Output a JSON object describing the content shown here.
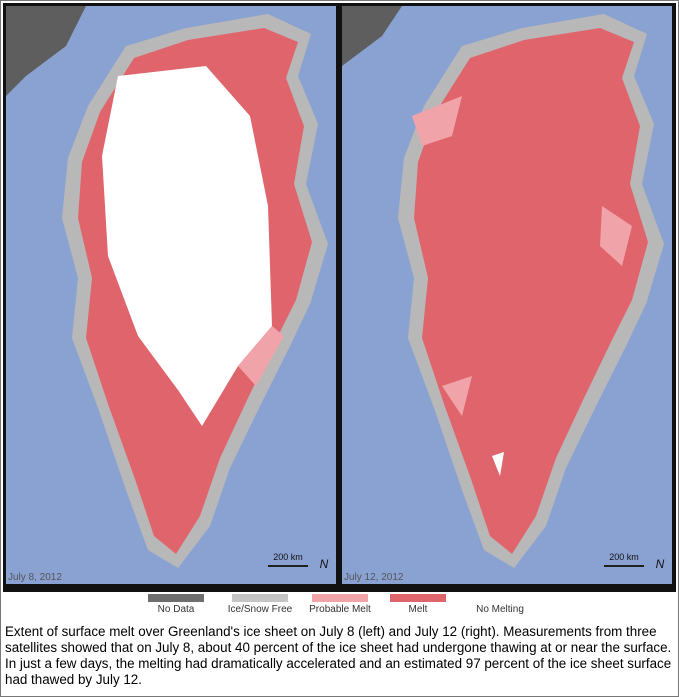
{
  "panels": [
    {
      "date": "July 8, 2012",
      "scale": "200 km",
      "north": "N"
    },
    {
      "date": "July 12, 2012",
      "scale": "200 km",
      "north": "N"
    }
  ],
  "legend": [
    {
      "label": "No Data",
      "color": "#6e6e6e"
    },
    {
      "label": "Ice/Snow Free",
      "color": "#c4c4c4"
    },
    {
      "label": "Probable Melt",
      "color": "#f0a4aa"
    },
    {
      "label": "Melt",
      "color": "#e0646c"
    },
    {
      "label": "No Melting",
      "color": "#ffffff"
    }
  ],
  "caption": "Extent of surface melt over Greenland's ice sheet on July 8 (left) and July 12 (right). Measurements from three satellites showed that on July 8, about 40 percent of the ice sheet had undergone thawing at or near the surface. In just a few days, the melting had dramatically accelerated and an estimated 97 percent of the ice sheet surface had thawed by July 12."
}
